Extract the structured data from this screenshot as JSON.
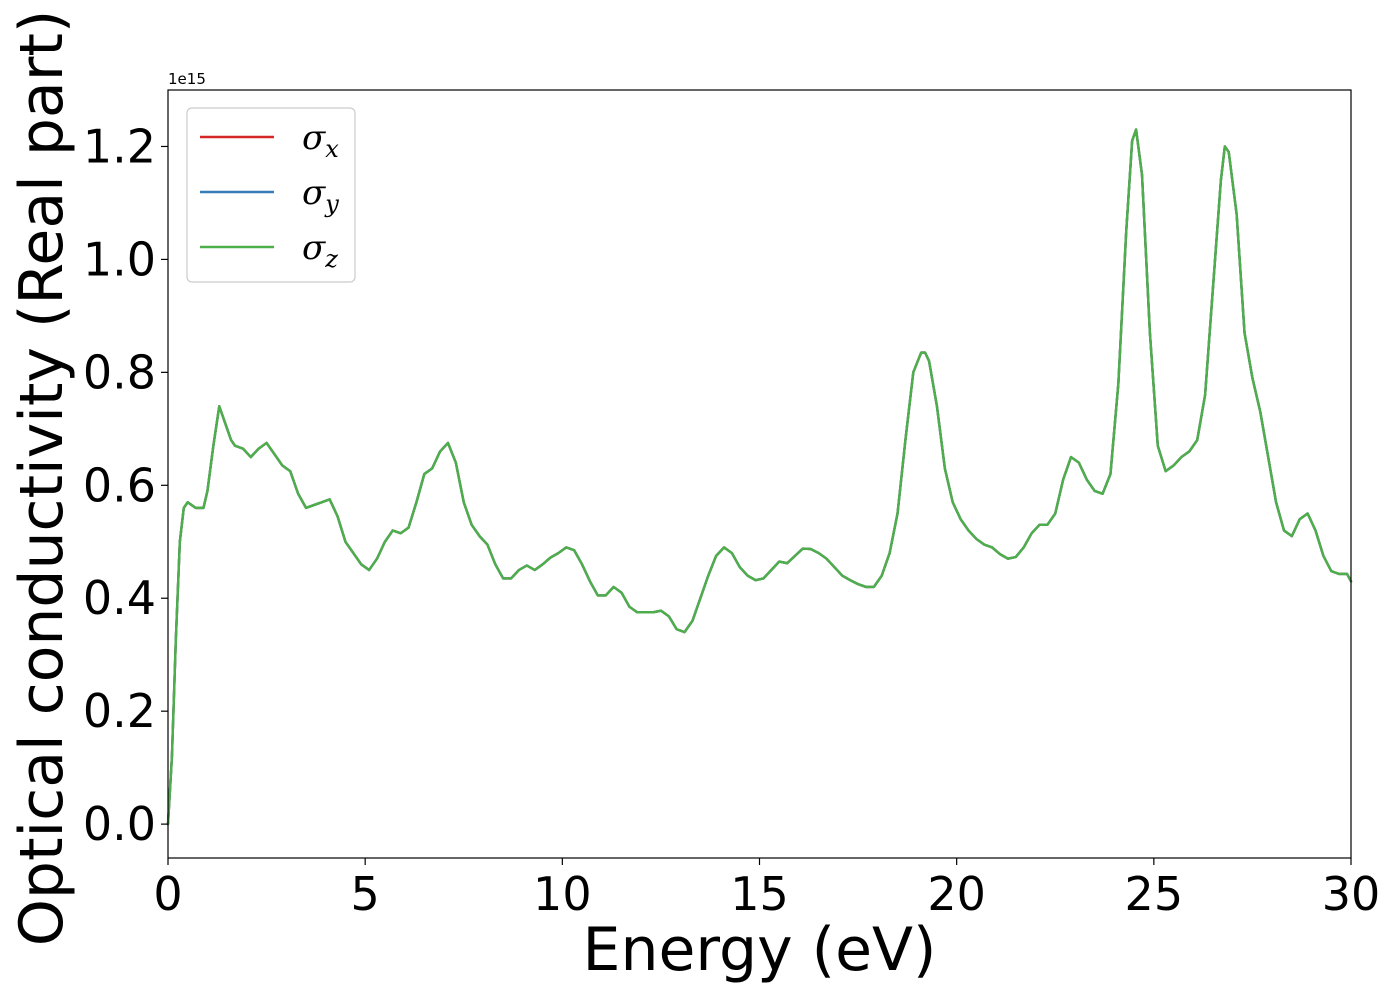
{
  "chart_data": {
    "type": "line",
    "xlabel": "Energy (eV)",
    "ylabel": "Optical conductivity (Real part)",
    "y_offset_label": "1e15",
    "xlim": [
      0,
      30
    ],
    "ylim": [
      -0.06,
      1.3
    ],
    "xticks": [
      0,
      5,
      10,
      15,
      20,
      25,
      30
    ],
    "xtick_labels": [
      "0",
      "5",
      "10",
      "15",
      "20",
      "25",
      "30"
    ],
    "yticks": [
      0.0,
      0.2,
      0.4,
      0.6,
      0.8,
      1.0,
      1.2
    ],
    "ytick_labels": [
      "0.0",
      "0.2",
      "0.4",
      "0.6",
      "0.8",
      "1.0",
      "1.2"
    ],
    "grid": false,
    "legend_position": "top-left",
    "x": [
      0,
      0.1,
      0.2,
      0.3,
      0.4,
      0.5,
      0.7,
      0.9,
      1.0,
      1.15,
      1.3,
      1.45,
      1.6,
      1.7,
      1.9,
      2.1,
      2.3,
      2.5,
      2.7,
      2.9,
      3.1,
      3.3,
      3.5,
      3.7,
      3.9,
      4.1,
      4.3,
      4.5,
      4.7,
      4.9,
      5.1,
      5.3,
      5.5,
      5.7,
      5.9,
      6.1,
      6.3,
      6.5,
      6.7,
      6.9,
      7.1,
      7.3,
      7.5,
      7.7,
      7.9,
      8.1,
      8.3,
      8.5,
      8.7,
      8.9,
      9.1,
      9.3,
      9.5,
      9.7,
      9.9,
      10.1,
      10.3,
      10.5,
      10.7,
      10.9,
      11.1,
      11.3,
      11.5,
      11.7,
      11.9,
      12.1,
      12.3,
      12.5,
      12.7,
      12.9,
      13.1,
      13.3,
      13.5,
      13.7,
      13.9,
      14.1,
      14.3,
      14.5,
      14.7,
      14.9,
      15.1,
      15.3,
      15.5,
      15.7,
      15.9,
      16.1,
      16.3,
      16.5,
      16.7,
      16.9,
      17.1,
      17.3,
      17.5,
      17.7,
      17.9,
      18.1,
      18.3,
      18.5,
      18.7,
      18.9,
      19.1,
      19.2,
      19.3,
      19.5,
      19.7,
      19.9,
      20.1,
      20.3,
      20.5,
      20.7,
      20.9,
      21.1,
      21.3,
      21.5,
      21.7,
      21.9,
      22.1,
      22.3,
      22.5,
      22.7,
      22.9,
      23.1,
      23.3,
      23.5,
      23.7,
      23.9,
      24.1,
      24.3,
      24.45,
      24.55,
      24.7,
      24.9,
      25.1,
      25.3,
      25.5,
      25.7,
      25.9,
      26.1,
      26.3,
      26.5,
      26.7,
      26.8,
      26.9,
      27.1,
      27.3,
      27.5,
      27.7,
      27.9,
      28.1,
      28.3,
      28.5,
      28.7,
      28.9,
      29.1,
      29.3,
      29.5,
      29.7,
      29.9,
      30.0
    ],
    "series": [
      {
        "name": "σx",
        "color": "#d62728",
        "values": [
          0.0,
          0.12,
          0.33,
          0.5,
          0.56,
          0.57,
          0.56,
          0.56,
          0.59,
          0.67,
          0.74,
          0.71,
          0.68,
          0.67,
          0.665,
          0.65,
          0.665,
          0.675,
          0.655,
          0.635,
          0.625,
          0.585,
          0.56,
          0.565,
          0.57,
          0.575,
          0.545,
          0.5,
          0.48,
          0.46,
          0.45,
          0.47,
          0.5,
          0.52,
          0.515,
          0.525,
          0.57,
          0.62,
          0.63,
          0.66,
          0.675,
          0.64,
          0.57,
          0.53,
          0.51,
          0.495,
          0.46,
          0.435,
          0.435,
          0.45,
          0.458,
          0.45,
          0.46,
          0.472,
          0.48,
          0.49,
          0.485,
          0.46,
          0.43,
          0.405,
          0.405,
          0.42,
          0.41,
          0.385,
          0.375,
          0.375,
          0.375,
          0.378,
          0.368,
          0.345,
          0.34,
          0.36,
          0.4,
          0.44,
          0.475,
          0.49,
          0.48,
          0.455,
          0.44,
          0.432,
          0.435,
          0.45,
          0.465,
          0.462,
          0.475,
          0.488,
          0.487,
          0.48,
          0.47,
          0.455,
          0.44,
          0.432,
          0.425,
          0.42,
          0.42,
          0.44,
          0.48,
          0.55,
          0.68,
          0.8,
          0.835,
          0.835,
          0.82,
          0.74,
          0.63,
          0.57,
          0.54,
          0.52,
          0.505,
          0.495,
          0.49,
          0.478,
          0.47,
          0.473,
          0.49,
          0.515,
          0.53,
          0.53,
          0.55,
          0.61,
          0.65,
          0.64,
          0.61,
          0.59,
          0.585,
          0.62,
          0.78,
          1.05,
          1.21,
          1.23,
          1.15,
          0.87,
          0.67,
          0.625,
          0.635,
          0.65,
          0.66,
          0.68,
          0.76,
          0.95,
          1.14,
          1.2,
          1.19,
          1.08,
          0.87,
          0.79,
          0.73,
          0.65,
          0.57,
          0.52,
          0.51,
          0.54,
          0.55,
          0.52,
          0.475,
          0.448,
          0.443,
          0.443,
          0.43
        ]
      },
      {
        "name": "σy",
        "color": "#377eb8",
        "values": [
          0.0,
          0.12,
          0.33,
          0.5,
          0.56,
          0.57,
          0.56,
          0.56,
          0.59,
          0.67,
          0.74,
          0.71,
          0.68,
          0.67,
          0.665,
          0.65,
          0.665,
          0.675,
          0.655,
          0.635,
          0.625,
          0.585,
          0.56,
          0.565,
          0.57,
          0.575,
          0.545,
          0.5,
          0.48,
          0.46,
          0.45,
          0.47,
          0.5,
          0.52,
          0.515,
          0.525,
          0.57,
          0.62,
          0.63,
          0.66,
          0.675,
          0.64,
          0.57,
          0.53,
          0.51,
          0.495,
          0.46,
          0.435,
          0.435,
          0.45,
          0.458,
          0.45,
          0.46,
          0.472,
          0.48,
          0.49,
          0.485,
          0.46,
          0.43,
          0.405,
          0.405,
          0.42,
          0.41,
          0.385,
          0.375,
          0.375,
          0.375,
          0.378,
          0.368,
          0.345,
          0.34,
          0.36,
          0.4,
          0.44,
          0.475,
          0.49,
          0.48,
          0.455,
          0.44,
          0.432,
          0.435,
          0.45,
          0.465,
          0.462,
          0.475,
          0.488,
          0.487,
          0.48,
          0.47,
          0.455,
          0.44,
          0.432,
          0.425,
          0.42,
          0.42,
          0.44,
          0.48,
          0.55,
          0.68,
          0.8,
          0.835,
          0.835,
          0.82,
          0.74,
          0.63,
          0.57,
          0.54,
          0.52,
          0.505,
          0.495,
          0.49,
          0.478,
          0.47,
          0.473,
          0.49,
          0.515,
          0.53,
          0.53,
          0.55,
          0.61,
          0.65,
          0.64,
          0.61,
          0.59,
          0.585,
          0.62,
          0.78,
          1.05,
          1.21,
          1.23,
          1.15,
          0.87,
          0.67,
          0.625,
          0.635,
          0.65,
          0.66,
          0.68,
          0.76,
          0.95,
          1.14,
          1.2,
          1.19,
          1.08,
          0.87,
          0.79,
          0.73,
          0.65,
          0.57,
          0.52,
          0.51,
          0.54,
          0.55,
          0.52,
          0.475,
          0.448,
          0.443,
          0.443,
          0.43
        ]
      },
      {
        "name": "σz",
        "color": "#4daf4a",
        "values": [
          0.0,
          0.12,
          0.33,
          0.5,
          0.56,
          0.57,
          0.56,
          0.56,
          0.59,
          0.67,
          0.74,
          0.71,
          0.68,
          0.67,
          0.665,
          0.65,
          0.665,
          0.675,
          0.655,
          0.635,
          0.625,
          0.585,
          0.56,
          0.565,
          0.57,
          0.575,
          0.545,
          0.5,
          0.48,
          0.46,
          0.45,
          0.47,
          0.5,
          0.52,
          0.515,
          0.525,
          0.57,
          0.62,
          0.63,
          0.66,
          0.675,
          0.64,
          0.57,
          0.53,
          0.51,
          0.495,
          0.46,
          0.435,
          0.435,
          0.45,
          0.458,
          0.45,
          0.46,
          0.472,
          0.48,
          0.49,
          0.485,
          0.46,
          0.43,
          0.405,
          0.405,
          0.42,
          0.41,
          0.385,
          0.375,
          0.375,
          0.375,
          0.378,
          0.368,
          0.345,
          0.34,
          0.36,
          0.4,
          0.44,
          0.475,
          0.49,
          0.48,
          0.455,
          0.44,
          0.432,
          0.435,
          0.45,
          0.465,
          0.462,
          0.475,
          0.488,
          0.487,
          0.48,
          0.47,
          0.455,
          0.44,
          0.432,
          0.425,
          0.42,
          0.42,
          0.44,
          0.48,
          0.55,
          0.68,
          0.8,
          0.835,
          0.835,
          0.82,
          0.74,
          0.63,
          0.57,
          0.54,
          0.52,
          0.505,
          0.495,
          0.49,
          0.478,
          0.47,
          0.473,
          0.49,
          0.515,
          0.53,
          0.53,
          0.55,
          0.61,
          0.65,
          0.64,
          0.61,
          0.59,
          0.585,
          0.62,
          0.78,
          1.05,
          1.21,
          1.23,
          1.15,
          0.87,
          0.67,
          0.625,
          0.635,
          0.65,
          0.66,
          0.68,
          0.76,
          0.95,
          1.14,
          1.2,
          1.19,
          1.08,
          0.87,
          0.79,
          0.73,
          0.65,
          0.57,
          0.52,
          0.51,
          0.54,
          0.55,
          0.52,
          0.475,
          0.448,
          0.443,
          0.443,
          0.43
        ]
      }
    ],
    "legend": [
      {
        "symbol": "σ",
        "subscript": "x",
        "color": "#d62728"
      },
      {
        "symbol": "σ",
        "subscript": "y",
        "color": "#377eb8"
      },
      {
        "symbol": "σ",
        "subscript": "z",
        "color": "#4daf4a"
      }
    ]
  }
}
